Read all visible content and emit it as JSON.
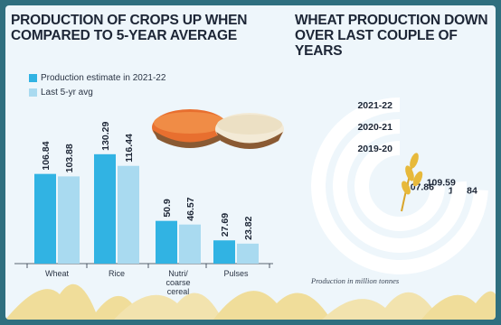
{
  "left_title_lines": [
    "PRODUCTION OF CROPS UP WHEN",
    "COMPARED TO 5-YEAR AVERAGE"
  ],
  "right_title_lines": [
    "WHEAT PRODUCTION DOWN",
    "OVER LAST COUPLE OF YEARS"
  ],
  "footnote": "Production in million tonnes",
  "colors": {
    "estimate": "#31b3e3",
    "avg": "#a9daf0",
    "ring": "#ffffff",
    "frame": "#2f6f7f",
    "background": "#eef6fb"
  },
  "chart_data": [
    {
      "type": "bar",
      "title": "PRODUCTION OF CROPS UP WHEN COMPARED TO 5-YEAR AVERAGE",
      "categories": [
        [
          "Wheat"
        ],
        [
          "Rice"
        ],
        [
          "Nutri/",
          "coarse",
          "cereal"
        ],
        [
          "Pulses"
        ]
      ],
      "series": [
        {
          "name": "Production estimate in 2021-22",
          "values": [
            106.84,
            130.29,
            50.9,
            27.69
          ],
          "labels": [
            "106.84",
            "130.29",
            "50.9",
            "27.69"
          ]
        },
        {
          "name": "Last 5-yr avg",
          "values": [
            103.88,
            116.44,
            46.57,
            23.82
          ],
          "labels": [
            "103.88",
            "116.44",
            "46.57",
            "23.82"
          ]
        }
      ],
      "legend_position": "top-left",
      "grid": false
    },
    {
      "type": "radial-bar",
      "title": "WHEAT PRODUCTION DOWN OVER LAST COUPLE OF YEARS",
      "categories": [
        "2021-22",
        "2020-21",
        "2019-20"
      ],
      "values": [
        106.84,
        109.59,
        107.86
      ],
      "labels": [
        "106.84",
        "109.59",
        "107.86"
      ],
      "unit": "Production in million tonnes"
    }
  ]
}
